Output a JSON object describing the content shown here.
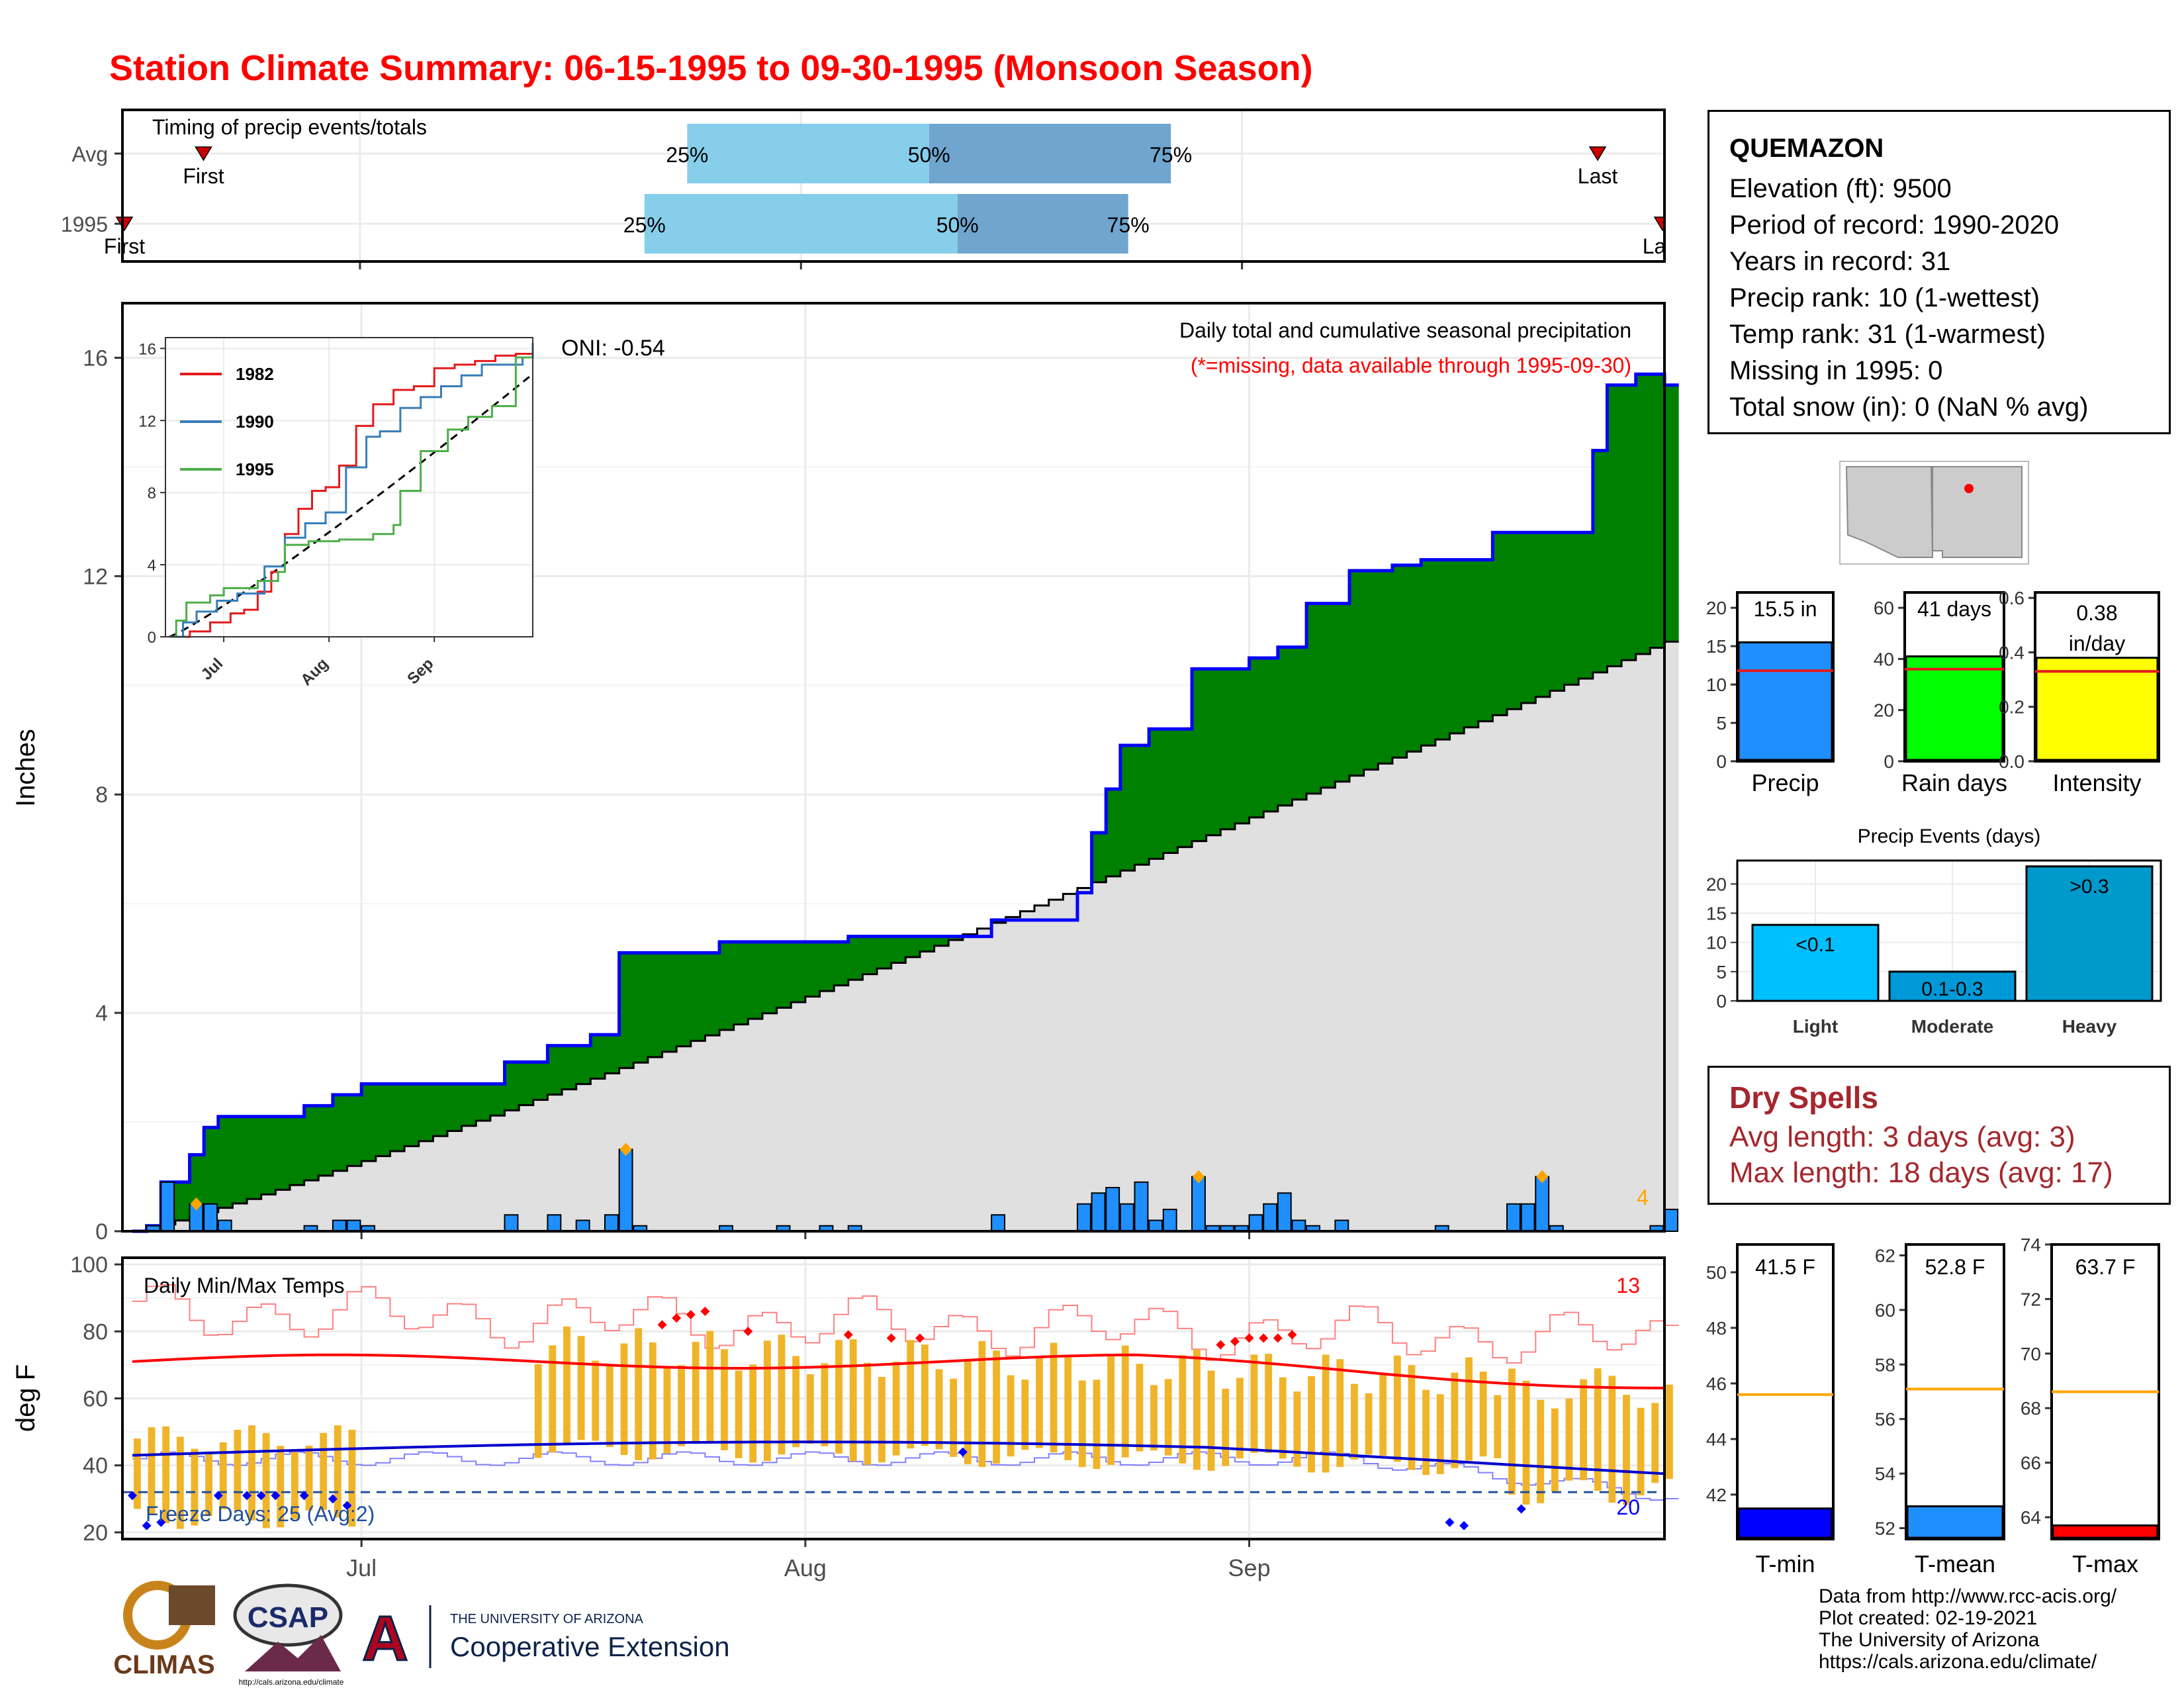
{
  "title": "Station Climate Summary: 06-15-1995 to 09-30-1995 (Monsoon Season)",
  "colors": {
    "title": "#ff0000",
    "obs": "#1f8fff",
    "green": "#008000",
    "normal_fill": "#e0e0e0",
    "light_q": "#87ceeb",
    "dark_q": "#6fa5cf",
    "tmax": "#ff0000",
    "tmin": "#0000cc",
    "range": "#f0b429",
    "dry": "#a5272d"
  },
  "info": {
    "station": "QUEMAZON",
    "lines": [
      "Elevation (ft): 9500",
      "Period of record: 1990-2020",
      "Years in record: 31",
      "Precip rank: 10 (1-wettest)",
      "Temp rank: 31 (1-warmest)",
      "Missing in 1995: 0",
      "Total snow (in): 0 (NaN % avg)"
    ]
  },
  "dry_spells": {
    "header": "Dry Spells",
    "avg": "Avg length: 3 days (avg: 3)",
    "max": "Max length: 18 days (avg: 17)"
  },
  "credits": [
    "Data from http://www.rcc-acis.org/",
    "Plot created: 02-19-2021",
    "The University of Arizona",
    "https://cals.arizona.edu/climate/"
  ],
  "logos": {
    "climas": "CLIMAS",
    "csap": "CSAP",
    "csap_url": "http://cals.arizona.edu/climate",
    "ua_top": "THE UNIVERSITY OF ARIZONA",
    "ua_bottom": "Cooperative Extension"
  },
  "chart_data": [
    {
      "id": "timing",
      "type": "bar",
      "title": "Timing of precip events/totals",
      "rows": [
        {
          "name": "Avg",
          "first": "Jun 20",
          "last": "Sep 26",
          "q25": "Jul 24",
          "q50": "Aug 10",
          "q75": "Aug 27"
        },
        {
          "name": "1995",
          "first": "Jun 15",
          "last": "Sep 30",
          "q25": "Jul 21",
          "q50": "Aug 12",
          "q75": "Aug 24"
        }
      ],
      "labels": {
        "first": "First",
        "last": "Last",
        "q25": "25%",
        "q50": "50%",
        "q75": "75%"
      }
    },
    {
      "id": "precip",
      "type": "area",
      "ylabel": "Inches",
      "ylim": [
        0,
        17
      ],
      "yticks": [
        0,
        4,
        8,
        12,
        16
      ],
      "x_range": [
        "1995-06-15",
        "1995-09-30"
      ],
      "xticks": [
        "Jul",
        "Aug",
        "Sep"
      ],
      "annotation": "Daily total and cumulative seasonal precipitation",
      "missing_note": "(*=missing, data available through 1995-09-30)",
      "oni": "ONI: -0.54",
      "corner_count": "4",
      "cumulative_observed": [
        [
          0,
          0
        ],
        [
          1,
          0.1
        ],
        [
          2,
          0.9
        ],
        [
          4,
          1.4
        ],
        [
          5,
          1.9
        ],
        [
          6,
          2.1
        ],
        [
          12,
          2.3
        ],
        [
          14,
          2.5
        ],
        [
          16,
          2.7
        ],
        [
          26,
          3.1
        ],
        [
          29,
          3.4
        ],
        [
          32,
          3.6
        ],
        [
          34,
          5.1
        ],
        [
          41,
          5.3
        ],
        [
          50,
          5.4
        ],
        [
          60,
          5.7
        ],
        [
          66,
          6.2
        ],
        [
          67,
          7.3
        ],
        [
          68,
          8.1
        ],
        [
          69,
          8.9
        ],
        [
          71,
          9.2
        ],
        [
          74,
          10.3
        ],
        [
          78,
          10.5
        ],
        [
          80,
          10.7
        ],
        [
          82,
          11.5
        ],
        [
          85,
          12.1
        ],
        [
          88,
          12.2
        ],
        [
          90,
          12.3
        ],
        [
          95,
          12.8
        ],
        [
          102,
          14.3
        ],
        [
          103,
          15.5
        ],
        [
          105,
          15.7
        ],
        [
          107,
          15.5
        ]
      ],
      "cumulative_normal_end": 10.8,
      "daily_bars": [
        [
          1,
          0.1
        ],
        [
          2,
          0.9
        ],
        [
          4,
          0.5
        ],
        [
          5,
          0.5
        ],
        [
          6,
          0.2
        ],
        [
          12,
          0.1
        ],
        [
          14,
          0.2
        ],
        [
          15,
          0.2
        ],
        [
          16,
          0.1
        ],
        [
          26,
          0.3
        ],
        [
          29,
          0.3
        ],
        [
          31,
          0.2
        ],
        [
          33,
          0.3
        ],
        [
          34,
          1.5
        ],
        [
          35,
          0.1
        ],
        [
          41,
          0.1
        ],
        [
          45,
          0.1
        ],
        [
          48,
          0.1
        ],
        [
          50,
          0.1
        ],
        [
          60,
          0.3
        ],
        [
          66,
          0.5
        ],
        [
          67,
          0.7
        ],
        [
          68,
          0.8
        ],
        [
          69,
          0.5
        ],
        [
          70,
          0.9
        ],
        [
          71,
          0.2
        ],
        [
          72,
          0.4
        ],
        [
          74,
          1.0
        ],
        [
          75,
          0.1
        ],
        [
          76,
          0.1
        ],
        [
          77,
          0.1
        ],
        [
          78,
          0.3
        ],
        [
          79,
          0.5
        ],
        [
          80,
          0.7
        ],
        [
          81,
          0.2
        ],
        [
          82,
          0.1
        ],
        [
          84,
          0.2
        ],
        [
          91,
          0.1
        ],
        [
          96,
          0.5
        ],
        [
          97,
          0.5
        ],
        [
          98,
          1.0
        ],
        [
          99,
          0.1
        ],
        [
          106,
          0.1
        ],
        [
          107,
          0.4
        ]
      ],
      "inset": {
        "ylim": [
          0,
          16
        ],
        "yticks": [
          0,
          4,
          8,
          12,
          16
        ],
        "xticks": [
          "Jul",
          "Aug",
          "Sep"
        ],
        "series": [
          {
            "name": "1982",
            "color": "#e41a1c"
          },
          {
            "name": "1990",
            "color": "#377eb8"
          },
          {
            "name": "1995",
            "color": "#4daf4a"
          }
        ]
      }
    },
    {
      "id": "temps",
      "type": "line",
      "ylabel": "deg F",
      "ylim": [
        18,
        102
      ],
      "yticks": [
        20,
        40,
        60,
        80,
        100
      ],
      "title": "Daily Min/Max Temps",
      "freeze_label": "Freeze Days: 25 (Avg:2)",
      "hot_count": "13",
      "cold_count": "20",
      "freeze_line": 32
    },
    {
      "id": "summary",
      "type": "bar",
      "panels": [
        {
          "name": "Precip",
          "value": 15.5,
          "label": "15.5 in",
          "avg": 11.8,
          "ylim": [
            0,
            22
          ],
          "yticks": [
            0,
            5,
            10,
            15,
            20
          ],
          "color": "#1f8fff"
        },
        {
          "name": "Rain days",
          "value": 41,
          "label": "41 days",
          "avg": 36,
          "ylim": [
            0,
            66
          ],
          "yticks": [
            0,
            20,
            40,
            60
          ],
          "color": "#00ff00"
        },
        {
          "name": "Intensity",
          "value": 0.38,
          "label": "0.38 in/day",
          "avg": 0.33,
          "ylim": [
            0,
            0.62
          ],
          "yticks": [
            "0.0",
            "0.2",
            "0.4",
            "0.6"
          ],
          "color": "#ffff00"
        }
      ]
    },
    {
      "id": "events",
      "type": "bar",
      "title": "Precip Events (days)",
      "categories": [
        "Light",
        "Moderate",
        "Heavy"
      ],
      "bar_labels": [
        "<0.1",
        "0.1-0.3",
        ">0.3"
      ],
      "values": [
        13,
        5,
        23
      ],
      "ylim": [
        0,
        24
      ],
      "yticks": [
        0,
        5,
        10,
        15,
        20
      ],
      "colors": [
        "#00bfff",
        "#0099d8",
        "#0099cc"
      ]
    },
    {
      "id": "temp_summary",
      "type": "bar",
      "panels": [
        {
          "name": "T-min",
          "value": 41.5,
          "label": "41.5 F",
          "avg": 45.6,
          "ylim": [
            40.4,
            51
          ],
          "yticks": [
            42,
            44,
            46,
            48,
            50
          ],
          "color": "#0000ff"
        },
        {
          "name": "T-mean",
          "value": 52.8,
          "label": "52.8 F",
          "avg": 57.1,
          "ylim": [
            51.6,
            62.4
          ],
          "yticks": [
            52,
            54,
            56,
            58,
            60,
            62
          ],
          "color": "#1f8fff"
        },
        {
          "name": "T-max",
          "value": 63.7,
          "label": "63.7 F",
          "avg": 68.6,
          "ylim": [
            63.2,
            74
          ],
          "yticks": [
            64,
            66,
            68,
            70,
            72,
            74
          ],
          "color": "#ff0000"
        }
      ]
    }
  ]
}
